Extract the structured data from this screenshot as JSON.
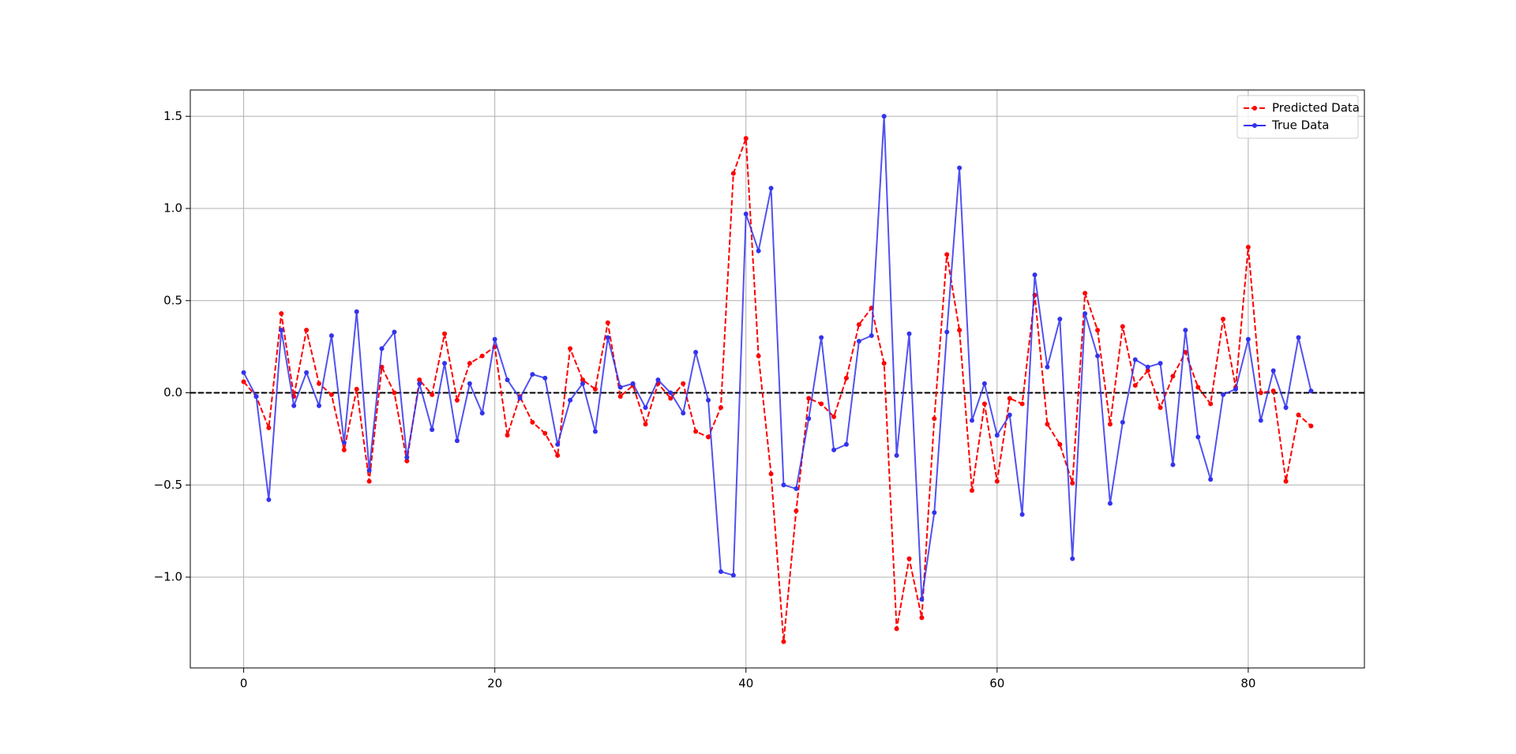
{
  "chart_data": {
    "type": "line",
    "x": [
      0,
      1,
      2,
      3,
      4,
      5,
      6,
      7,
      8,
      9,
      10,
      11,
      12,
      13,
      14,
      15,
      16,
      17,
      18,
      19,
      20,
      21,
      22,
      23,
      24,
      25,
      26,
      27,
      28,
      29,
      30,
      31,
      32,
      33,
      34,
      35,
      36,
      37,
      38,
      39,
      40,
      41,
      42,
      43,
      44,
      45,
      46,
      47,
      48,
      49,
      50,
      51,
      52,
      53,
      54,
      55,
      56,
      57,
      58,
      59,
      60,
      61,
      62,
      63,
      64,
      65,
      66,
      67,
      68,
      69,
      70,
      71,
      72,
      73,
      74,
      75,
      76,
      77,
      78,
      79,
      80,
      81,
      82,
      83,
      84,
      85
    ],
    "series": [
      {
        "name": "Predicted Data",
        "color": "#ff0000",
        "dashed": true,
        "values": [
          0.06,
          -0.02,
          -0.19,
          0.43,
          -0.02,
          0.34,
          0.05,
          -0.01,
          -0.31,
          0.02,
          -0.48,
          0.14,
          0.0,
          -0.37,
          0.07,
          -0.01,
          0.32,
          -0.04,
          0.16,
          0.2,
          0.25,
          -0.23,
          -0.02,
          -0.16,
          -0.22,
          -0.34,
          0.24,
          0.07,
          0.02,
          0.38,
          -0.02,
          0.04,
          -0.17,
          0.05,
          -0.03,
          0.05,
          -0.21,
          -0.24,
          -0.08,
          1.19,
          1.38,
          0.2,
          -0.44,
          -1.35,
          -0.64,
          -0.03,
          -0.06,
          -0.13,
          0.08,
          0.37,
          0.46,
          0.16,
          -1.28,
          -0.9,
          -1.22,
          -0.14,
          0.75,
          0.34,
          -0.53,
          -0.06,
          -0.48,
          -0.03,
          -0.06,
          0.53,
          -0.17,
          -0.28,
          -0.49,
          0.54,
          0.34,
          -0.17,
          0.36,
          0.04,
          0.12,
          -0.08,
          0.09,
          0.22,
          0.03,
          -0.06,
          0.4,
          0.03,
          0.79,
          0.0,
          0.01,
          -0.48,
          -0.12,
          -0.18
        ]
      },
      {
        "name": "True Data",
        "color": "#3333ee",
        "dashed": false,
        "values": [
          0.11,
          -0.02,
          -0.58,
          0.34,
          -0.07,
          0.11,
          -0.07,
          0.31,
          -0.27,
          0.44,
          -0.42,
          0.24,
          0.33,
          -0.35,
          0.05,
          -0.2,
          0.16,
          -0.26,
          0.05,
          -0.11,
          0.29,
          0.07,
          -0.03,
          0.1,
          0.08,
          -0.28,
          -0.04,
          0.05,
          -0.21,
          0.3,
          0.03,
          0.05,
          -0.08,
          0.07,
          0.0,
          -0.11,
          0.22,
          -0.04,
          -0.97,
          -0.99,
          0.97,
          0.77,
          1.11,
          -0.5,
          -0.52,
          -0.14,
          0.3,
          -0.31,
          -0.28,
          0.28,
          0.31,
          1.5,
          -0.34,
          0.32,
          -1.12,
          -0.65,
          0.33,
          1.22,
          -0.15,
          0.05,
          -0.23,
          -0.12,
          -0.66,
          0.64,
          0.14,
          0.4,
          -0.9,
          0.43,
          0.2,
          -0.6,
          -0.16,
          0.18,
          0.14,
          0.16,
          -0.39,
          0.34,
          -0.24,
          -0.47,
          -0.01,
          0.02,
          0.29,
          -0.15,
          0.12,
          -0.08,
          0.3,
          0.01
        ]
      }
    ],
    "xlim": [
      -4.25,
      89.25
    ],
    "ylim": [
      -1.4925,
      1.6425
    ],
    "xticks": [
      0,
      20,
      40,
      60,
      80
    ],
    "yticks": [
      {
        "value": -1,
        "label": "−1.0"
      },
      {
        "value": -0.5,
        "label": "−0.5"
      },
      {
        "value": 0,
        "label": "0.0"
      },
      0.5,
      {
        "value": 1,
        "label": "1.0"
      },
      1.5
    ],
    "hline": 0,
    "grid": true,
    "legend": "upper right"
  }
}
